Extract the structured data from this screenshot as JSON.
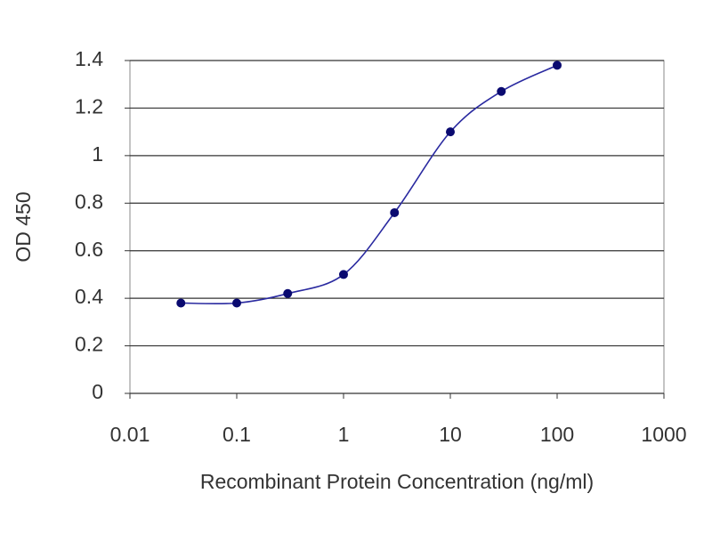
{
  "chart_data": {
    "type": "line",
    "xlabel": "Recombinant Protein Concentration (ng/ml)",
    "ylabel": "OD 450",
    "x": [
      0.03,
      0.1,
      0.3,
      1,
      3,
      10,
      30,
      100
    ],
    "values": [
      0.38,
      0.38,
      0.42,
      0.5,
      0.76,
      1.1,
      1.27,
      1.38
    ],
    "color": "#2a2aa0",
    "marker_color": "#0a0a70",
    "xscale": "log",
    "xlim": [
      0.01,
      1000
    ],
    "xticks": [
      0.01,
      0.1,
      1,
      10,
      100,
      1000
    ],
    "ylim": [
      0,
      1.4
    ],
    "yticks": [
      0,
      0.2,
      0.4,
      0.6,
      0.8,
      1,
      1.2,
      1.4
    ],
    "grid": true
  }
}
